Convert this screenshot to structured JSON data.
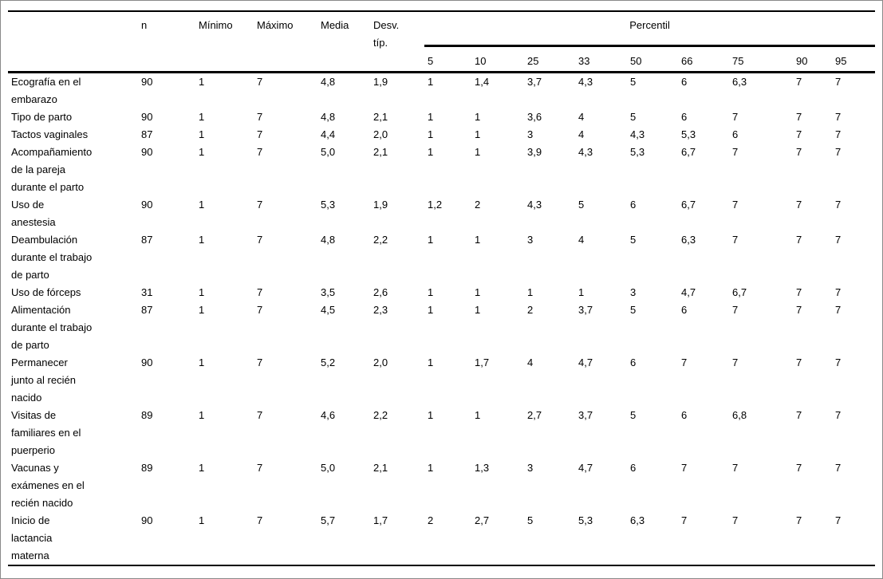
{
  "page": {
    "background": "#ffffff",
    "outer_border_color": "#8a8a8a",
    "rule_color": "#000000"
  },
  "table": {
    "row_label_header": "",
    "stat_columns": [
      "n",
      "Mínimo",
      "Máximo",
      "Media",
      "Desv.\ntíp."
    ],
    "percentil_group_label": "Percentil",
    "percentile_levels": [
      "5",
      "10",
      "25",
      "33",
      "50",
      "66",
      "75",
      "90",
      "95"
    ],
    "rows": [
      {
        "label": "Ecografía en el\nembarazo",
        "stats": [
          "90",
          "1",
          "7",
          "4,8",
          "1,9"
        ],
        "percentiles": [
          "1",
          "1,4",
          "3,7",
          "4,3",
          "5",
          "6",
          "6,3",
          "7",
          "7"
        ]
      },
      {
        "label": "Tipo de parto",
        "stats": [
          "90",
          "1",
          "7",
          "4,8",
          "2,1"
        ],
        "percentiles": [
          "1",
          "1",
          "3,6",
          "4",
          "5",
          "6",
          "7",
          "7",
          "7"
        ]
      },
      {
        "label": "Tactos vaginales",
        "stats": [
          "87",
          "1",
          "7",
          "4,4",
          "2,0"
        ],
        "percentiles": [
          "1",
          "1",
          "3",
          "4",
          "4,3",
          "5,3",
          "6",
          "7",
          "7"
        ]
      },
      {
        "label": "Acompañamiento\nde la pareja\ndurante el parto",
        "stats": [
          "90",
          "1",
          "7",
          "5,0",
          "2,1"
        ],
        "percentiles": [
          "1",
          "1",
          "3,9",
          "4,3",
          "5,3",
          "6,7",
          "7",
          "7",
          "7"
        ]
      },
      {
        "label": "Uso de\nanestesia",
        "stats": [
          "90",
          "1",
          "7",
          "5,3",
          "1,9"
        ],
        "percentiles": [
          "1,2",
          "2",
          "4,3",
          "5",
          "6",
          "6,7",
          "7",
          "7",
          "7"
        ]
      },
      {
        "label": "Deambulación\ndurante el trabajo\nde parto",
        "stats": [
          "87",
          "1",
          "7",
          "4,8",
          "2,2"
        ],
        "percentiles": [
          "1",
          "1",
          "3",
          "4",
          "5",
          "6,3",
          "7",
          "7",
          "7"
        ]
      },
      {
        "label": "Uso de fórceps",
        "stats": [
          "31",
          "1",
          "7",
          "3,5",
          "2,6"
        ],
        "percentiles": [
          "1",
          "1",
          "1",
          "1",
          "3",
          "4,7",
          "6,7",
          "7",
          "7"
        ]
      },
      {
        "label": "Alimentación\ndurante el trabajo\nde parto",
        "stats": [
          "87",
          "1",
          "7",
          "4,5",
          "2,3"
        ],
        "percentiles": [
          "1",
          "1",
          "2",
          "3,7",
          "5",
          "6",
          "7",
          "7",
          "7"
        ]
      },
      {
        "label": "Permanecer\njunto al recién\nnacido",
        "stats": [
          "90",
          "1",
          "7",
          "5,2",
          "2,0"
        ],
        "percentiles": [
          "1",
          "1,7",
          "4",
          "4,7",
          "6",
          "7",
          "7",
          "7",
          "7"
        ]
      },
      {
        "label": "Visitas de\nfamiliares en el\npuerperio",
        "stats": [
          "89",
          "1",
          "7",
          "4,6",
          "2,2"
        ],
        "percentiles": [
          "1",
          "1",
          "2,7",
          "3,7",
          "5",
          "6",
          "6,8",
          "7",
          "7"
        ]
      },
      {
        "label": "Vacunas y\nexámenes en el\nrecién nacido",
        "stats": [
          "89",
          "1",
          "7",
          "5,0",
          "2,1"
        ],
        "percentiles": [
          "1",
          "1,3",
          "3",
          "4,7",
          "6",
          "7",
          "7",
          "7",
          "7"
        ]
      },
      {
        "label": "Inicio de\nlactancia\nmaterna",
        "stats": [
          "90",
          "1",
          "7",
          "5,7",
          "1,7"
        ],
        "percentiles": [
          "2",
          "2,7",
          "5",
          "5,3",
          "6,3",
          "7",
          "7",
          "7",
          "7"
        ]
      }
    ]
  }
}
